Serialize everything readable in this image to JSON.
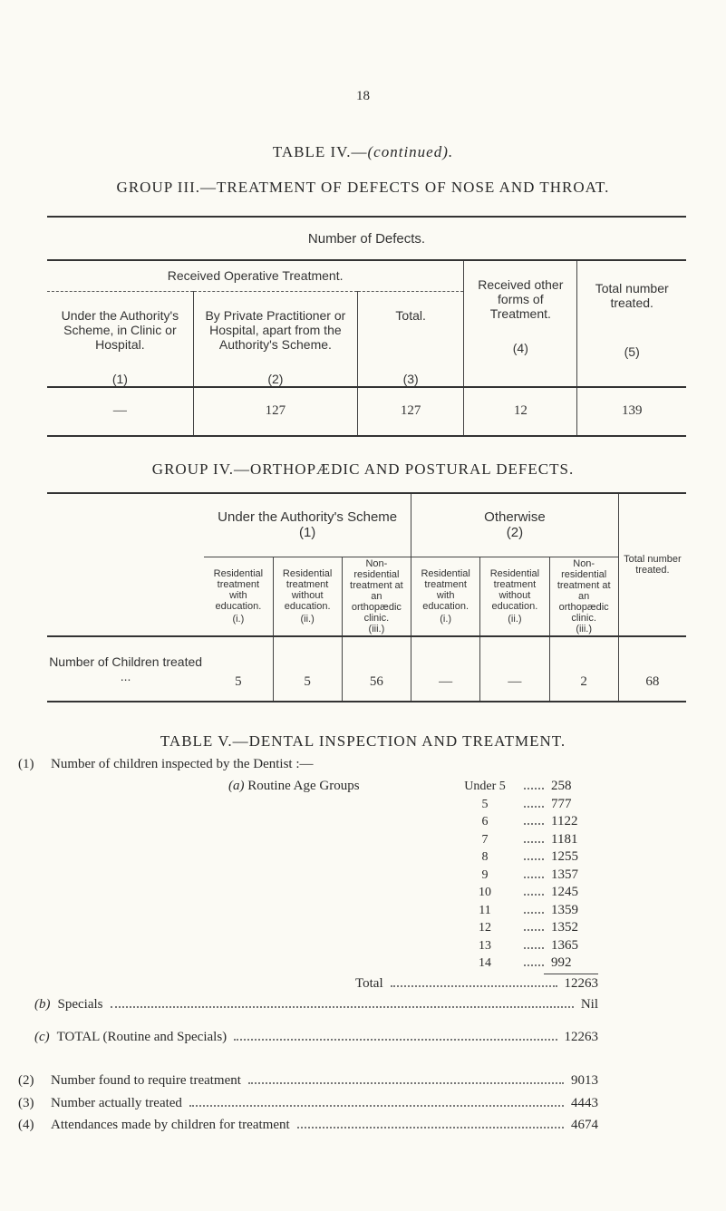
{
  "page_number": "18",
  "table_iv": {
    "title": "TABLE IV.—",
    "title_note": "(continued).",
    "group_iii": {
      "heading": "GROUP III.—TREATMENT OF DEFECTS OF NOSE AND THROAT.",
      "caption": "Number of Defects.",
      "span_header": "Received Operative Treatment.",
      "columns": [
        {
          "label": "Under the Authority's Scheme, in Clinic or Hospital.",
          "number": "(1)"
        },
        {
          "label": "By Private Practitioner or Hospital, apart from the Authority's Scheme.",
          "number": "(2)"
        },
        {
          "label": "Total.",
          "number": "(3)"
        },
        {
          "label": "Received other forms of Treatment.",
          "number": "(4)"
        },
        {
          "label": "Total number treated.",
          "number": "(5)"
        }
      ],
      "row": [
        "—",
        "127",
        "127",
        "12",
        "139"
      ]
    },
    "group_iv": {
      "heading": "GROUP IV.—ORTHOPÆDIC AND POSTURAL DEFECTS.",
      "groups": [
        {
          "label": "Under the Authority's Scheme",
          "number": "(1)"
        },
        {
          "label": "Otherwise",
          "number": "(2)"
        }
      ],
      "subcolumns": [
        {
          "label": "Residential treatment with education.",
          "number": "(i.)"
        },
        {
          "label": "Residential treatment without education.",
          "number": "(ii.)"
        },
        {
          "label": "Non-residential treatment at an orthopædic clinic.",
          "number": "(iii.)"
        },
        {
          "label": "Residential treatment with education.",
          "number": "(i.)"
        },
        {
          "label": "Residential treatment without education.",
          "number": "(ii.)"
        },
        {
          "label": "Non-residential treatment at an orthopædic clinic.",
          "number": "(iii.)"
        }
      ],
      "total_header": "Total number treated.",
      "row_label": "Number of Children treated ...",
      "row": [
        "5",
        "5",
        "56",
        "—",
        "—",
        "2",
        "68"
      ]
    }
  },
  "table_v": {
    "title": "TABLE V.—DENTAL INSPECTION AND TREATMENT.",
    "item_1": {
      "number": "(1)",
      "label": "Number of children inspected by the Dentist :—"
    },
    "routine": {
      "letter": "(a)",
      "label": "Routine Age Groups",
      "rows": [
        {
          "age": "Under 5",
          "value": "258"
        },
        {
          "age": "5",
          "value": "777"
        },
        {
          "age": "6",
          "value": "1122"
        },
        {
          "age": "7",
          "value": "1181"
        },
        {
          "age": "8",
          "value": "1255"
        },
        {
          "age": "9",
          "value": "1357"
        },
        {
          "age": "10",
          "value": "1245"
        },
        {
          "age": "11",
          "value": "1359"
        },
        {
          "age": "12",
          "value": "1352"
        },
        {
          "age": "13",
          "value": "1365"
        },
        {
          "age": "14",
          "value": "992"
        }
      ],
      "total_label": "Total",
      "total_value": "12263"
    },
    "specials": {
      "letter": "(b)",
      "label": "Specials",
      "value": "Nil"
    },
    "grand_total": {
      "letter": "(c)",
      "label": "TOTAL (Routine and Specials)",
      "value": "12263"
    },
    "items": [
      {
        "number": "(2)",
        "label": "Number found to require treatment",
        "value": "9013"
      },
      {
        "number": "(3)",
        "label": "Number actually treated",
        "value": "4443"
      },
      {
        "number": "(4)",
        "label": "Attendances made by children for treatment",
        "value": "4674"
      }
    ]
  }
}
